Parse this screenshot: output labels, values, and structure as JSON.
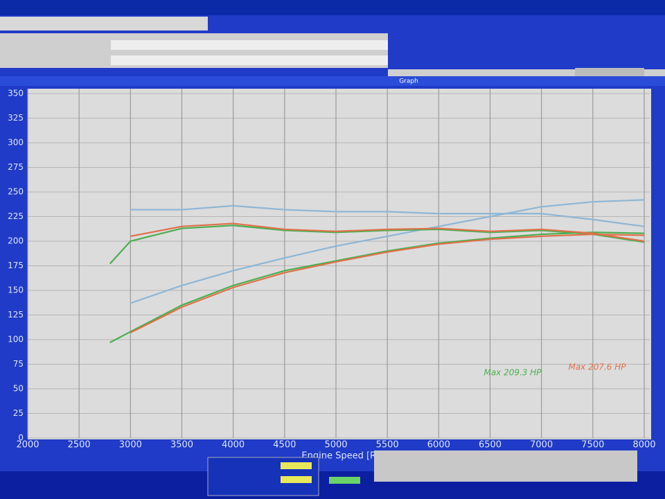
{
  "chart_data": {
    "type": "line",
    "title": "Graph",
    "x_label": "Engine Speed [Rad] (rpm)",
    "x": [
      2800,
      3000,
      3500,
      4000,
      4500,
      5000,
      5500,
      6000,
      6500,
      7000,
      7500,
      8000
    ],
    "series": [
      {
        "color": "#8db6d6",
        "values": [
          null,
          137,
          155,
          170,
          183,
          195,
          205,
          215,
          225,
          235,
          240,
          242
        ]
      },
      {
        "color": "#8db6d6",
        "values": [
          null,
          232,
          232,
          236,
          232,
          230,
          230,
          228,
          228,
          228,
          222,
          215
        ]
      },
      {
        "color": "#4caf50",
        "values": [
          97,
          108,
          135,
          155,
          170,
          180,
          190,
          198,
          203,
          207,
          209,
          208
        ]
      },
      {
        "color": "#4caf50",
        "values": [
          177,
          200,
          213,
          216,
          211,
          209,
          211,
          212,
          209,
          211,
          207,
          199
        ]
      },
      {
        "color": "#e0704a",
        "values": [
          null,
          107,
          133,
          153,
          168,
          179,
          189,
          197,
          202,
          205,
          207,
          206
        ]
      },
      {
        "color": "#e0704a",
        "values": [
          null,
          205,
          215,
          218,
          212,
          210,
          212,
          213,
          210,
          212,
          208,
          200
        ]
      }
    ],
    "annotations": [
      {
        "text": "Max 209.3 HP",
        "color": "#4caf50"
      },
      {
        "text": "Max 207.6 HP",
        "color": "#e0704a"
      }
    ],
    "xlim": [
      2000,
      8000
    ],
    "xticks": [
      2000,
      2500,
      3000,
      3500,
      4000,
      4500,
      5000,
      5500,
      6000,
      6500,
      7000,
      7500,
      8000
    ],
    "ylim": [
      0,
      350
    ],
    "yticks": [
      0,
      25,
      50,
      75,
      100,
      125,
      150,
      175,
      200,
      225,
      250,
      275,
      300,
      325,
      350
    ],
    "grid": true
  }
}
